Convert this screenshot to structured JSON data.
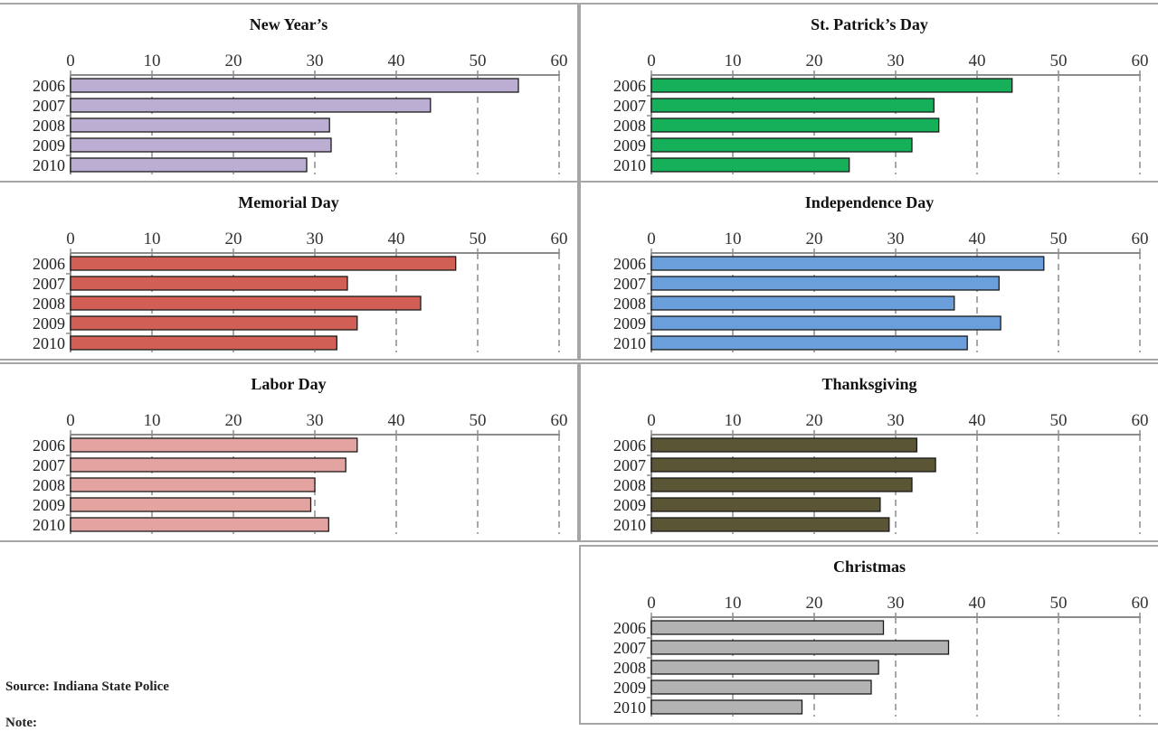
{
  "footer": {
    "source": "Source:  Indiana State Police",
    "note": "Note:"
  },
  "chart_data": [
    {
      "type": "bar",
      "title": "New Year’s",
      "color": "#bcaed2",
      "categories": [
        "2006",
        "2007",
        "2008",
        "2009",
        "2010"
      ],
      "values": [
        55.0,
        44.2,
        31.8,
        32.0,
        29.0
      ],
      "xlim": [
        0,
        60
      ],
      "xticks": [
        0,
        10,
        20,
        30,
        40,
        50,
        60
      ],
      "grid": true
    },
    {
      "type": "bar",
      "title": "St. Patrick’s Day",
      "color": "#17b05a",
      "categories": [
        "2006",
        "2007",
        "2008",
        "2009",
        "2010"
      ],
      "values": [
        44.3,
        34.7,
        35.3,
        32.0,
        24.3
      ],
      "xlim": [
        0,
        60
      ],
      "xticks": [
        0,
        10,
        20,
        30,
        40,
        50,
        60
      ],
      "grid": true
    },
    {
      "type": "bar",
      "title": "Memorial Day",
      "color": "#d15f56",
      "categories": [
        "2006",
        "2007",
        "2008",
        "2009",
        "2010"
      ],
      "values": [
        47.3,
        34.0,
        43.0,
        35.2,
        32.7
      ],
      "xlim": [
        0,
        60
      ],
      "xticks": [
        0,
        10,
        20,
        30,
        40,
        50,
        60
      ],
      "grid": true
    },
    {
      "type": "bar",
      "title": "Independence Day",
      "color": "#6a9fdb",
      "categories": [
        "2006",
        "2007",
        "2008",
        "2009",
        "2010"
      ],
      "values": [
        48.2,
        42.7,
        37.2,
        42.9,
        38.8
      ],
      "xlim": [
        0,
        60
      ],
      "xticks": [
        0,
        10,
        20,
        30,
        40,
        50,
        60
      ],
      "grid": true
    },
    {
      "type": "bar",
      "title": "Labor Day",
      "color": "#e3a3a0",
      "categories": [
        "2006",
        "2007",
        "2008",
        "2009",
        "2010"
      ],
      "values": [
        35.2,
        33.8,
        30.0,
        29.5,
        31.7
      ],
      "xlim": [
        0,
        60
      ],
      "xticks": [
        0,
        10,
        20,
        30,
        40,
        50,
        60
      ],
      "grid": true
    },
    {
      "type": "bar",
      "title": "Thanksgiving",
      "color": "#5a5535",
      "categories": [
        "2006",
        "2007",
        "2008",
        "2009",
        "2010"
      ],
      "values": [
        32.6,
        34.9,
        32.0,
        28.1,
        29.2
      ],
      "xlim": [
        0,
        60
      ],
      "xticks": [
        0,
        10,
        20,
        30,
        40,
        50,
        60
      ],
      "grid": true
    },
    {
      "type": "bar",
      "title": "Christmas",
      "color": "#b3b3b3",
      "categories": [
        "2006",
        "2007",
        "2008",
        "2009",
        "2010"
      ],
      "values": [
        28.5,
        36.5,
        27.9,
        27.0,
        18.5
      ],
      "xlim": [
        0,
        60
      ],
      "xticks": [
        0,
        10,
        20,
        30,
        40,
        50,
        60
      ],
      "grid": true
    }
  ]
}
